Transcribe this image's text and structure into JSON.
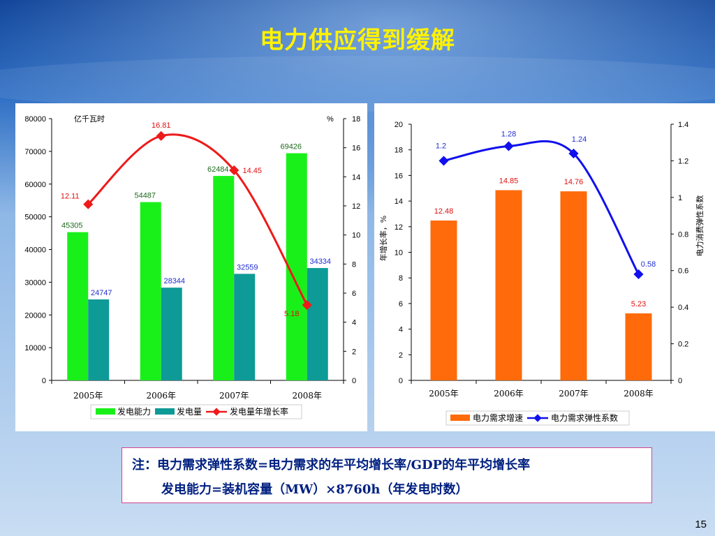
{
  "slide": {
    "title": "电力供应得到缓解",
    "page_number": "15",
    "note_line_1": "注：电力需求弹性系数=电力需求的年平均增长率/GDP的年平均增长率",
    "note_line_2": "发电能力=装机容量（MW）×8760h（年发电时数）"
  },
  "chart_data": [
    {
      "type": "bar",
      "categories": [
        "2005年",
        "2006年",
        "2007年",
        "2008年"
      ],
      "left_axis_unit": "亿千瓦时",
      "right_axis_unit": "%",
      "ylim_left": [
        0,
        80000
      ],
      "ylim_right": [
        0,
        18
      ],
      "left_ticks": [
        0,
        10000,
        20000,
        30000,
        40000,
        50000,
        60000,
        70000,
        80000
      ],
      "right_ticks": [
        0,
        2,
        4,
        6,
        8,
        10,
        12,
        14,
        16,
        18
      ],
      "series": [
        {
          "name": "发电能力",
          "kind": "bar",
          "axis": "left",
          "color": "#19F019",
          "label_color": "#1E6B1E",
          "values": [
            45305,
            54487,
            62484,
            69426
          ]
        },
        {
          "name": "发电量",
          "kind": "bar",
          "axis": "left",
          "color": "#0E9A96",
          "label_color": "#1F2FD0",
          "values": [
            24747,
            28344,
            32559,
            34334
          ]
        },
        {
          "name": "发电量年增长率",
          "kind": "line",
          "axis": "right",
          "color": "#EE1A1A",
          "label_color": "#E01010",
          "values": [
            12.11,
            16.81,
            14.45,
            5.18
          ]
        }
      ],
      "legend_position": "bottom"
    },
    {
      "type": "bar",
      "categories": [
        "2005年",
        "2006年",
        "2007年",
        "2008年"
      ],
      "left_axis_label": "年增长率，%",
      "right_axis_label": "电力消费弹性系数",
      "ylim_left": [
        0,
        20
      ],
      "ylim_right": [
        0,
        1.4
      ],
      "left_ticks": [
        0,
        2,
        4,
        6,
        8,
        10,
        12,
        14,
        16,
        18,
        20
      ],
      "right_ticks": [
        0,
        0.2,
        0.4,
        0.6,
        0.8,
        1,
        1.2,
        1.4
      ],
      "series": [
        {
          "name": "电力需求增速",
          "kind": "bar",
          "axis": "left",
          "color": "#FF6A0A",
          "label_color": "#E01010",
          "values": [
            12.48,
            14.85,
            14.76,
            5.23
          ]
        },
        {
          "name": "电力需求弹性系数",
          "kind": "line",
          "axis": "right",
          "color": "#1010EE",
          "label_color": "#1F2FD0",
          "values": [
            1.2,
            1.28,
            1.24,
            0.58
          ]
        }
      ],
      "legend_position": "bottom"
    }
  ]
}
